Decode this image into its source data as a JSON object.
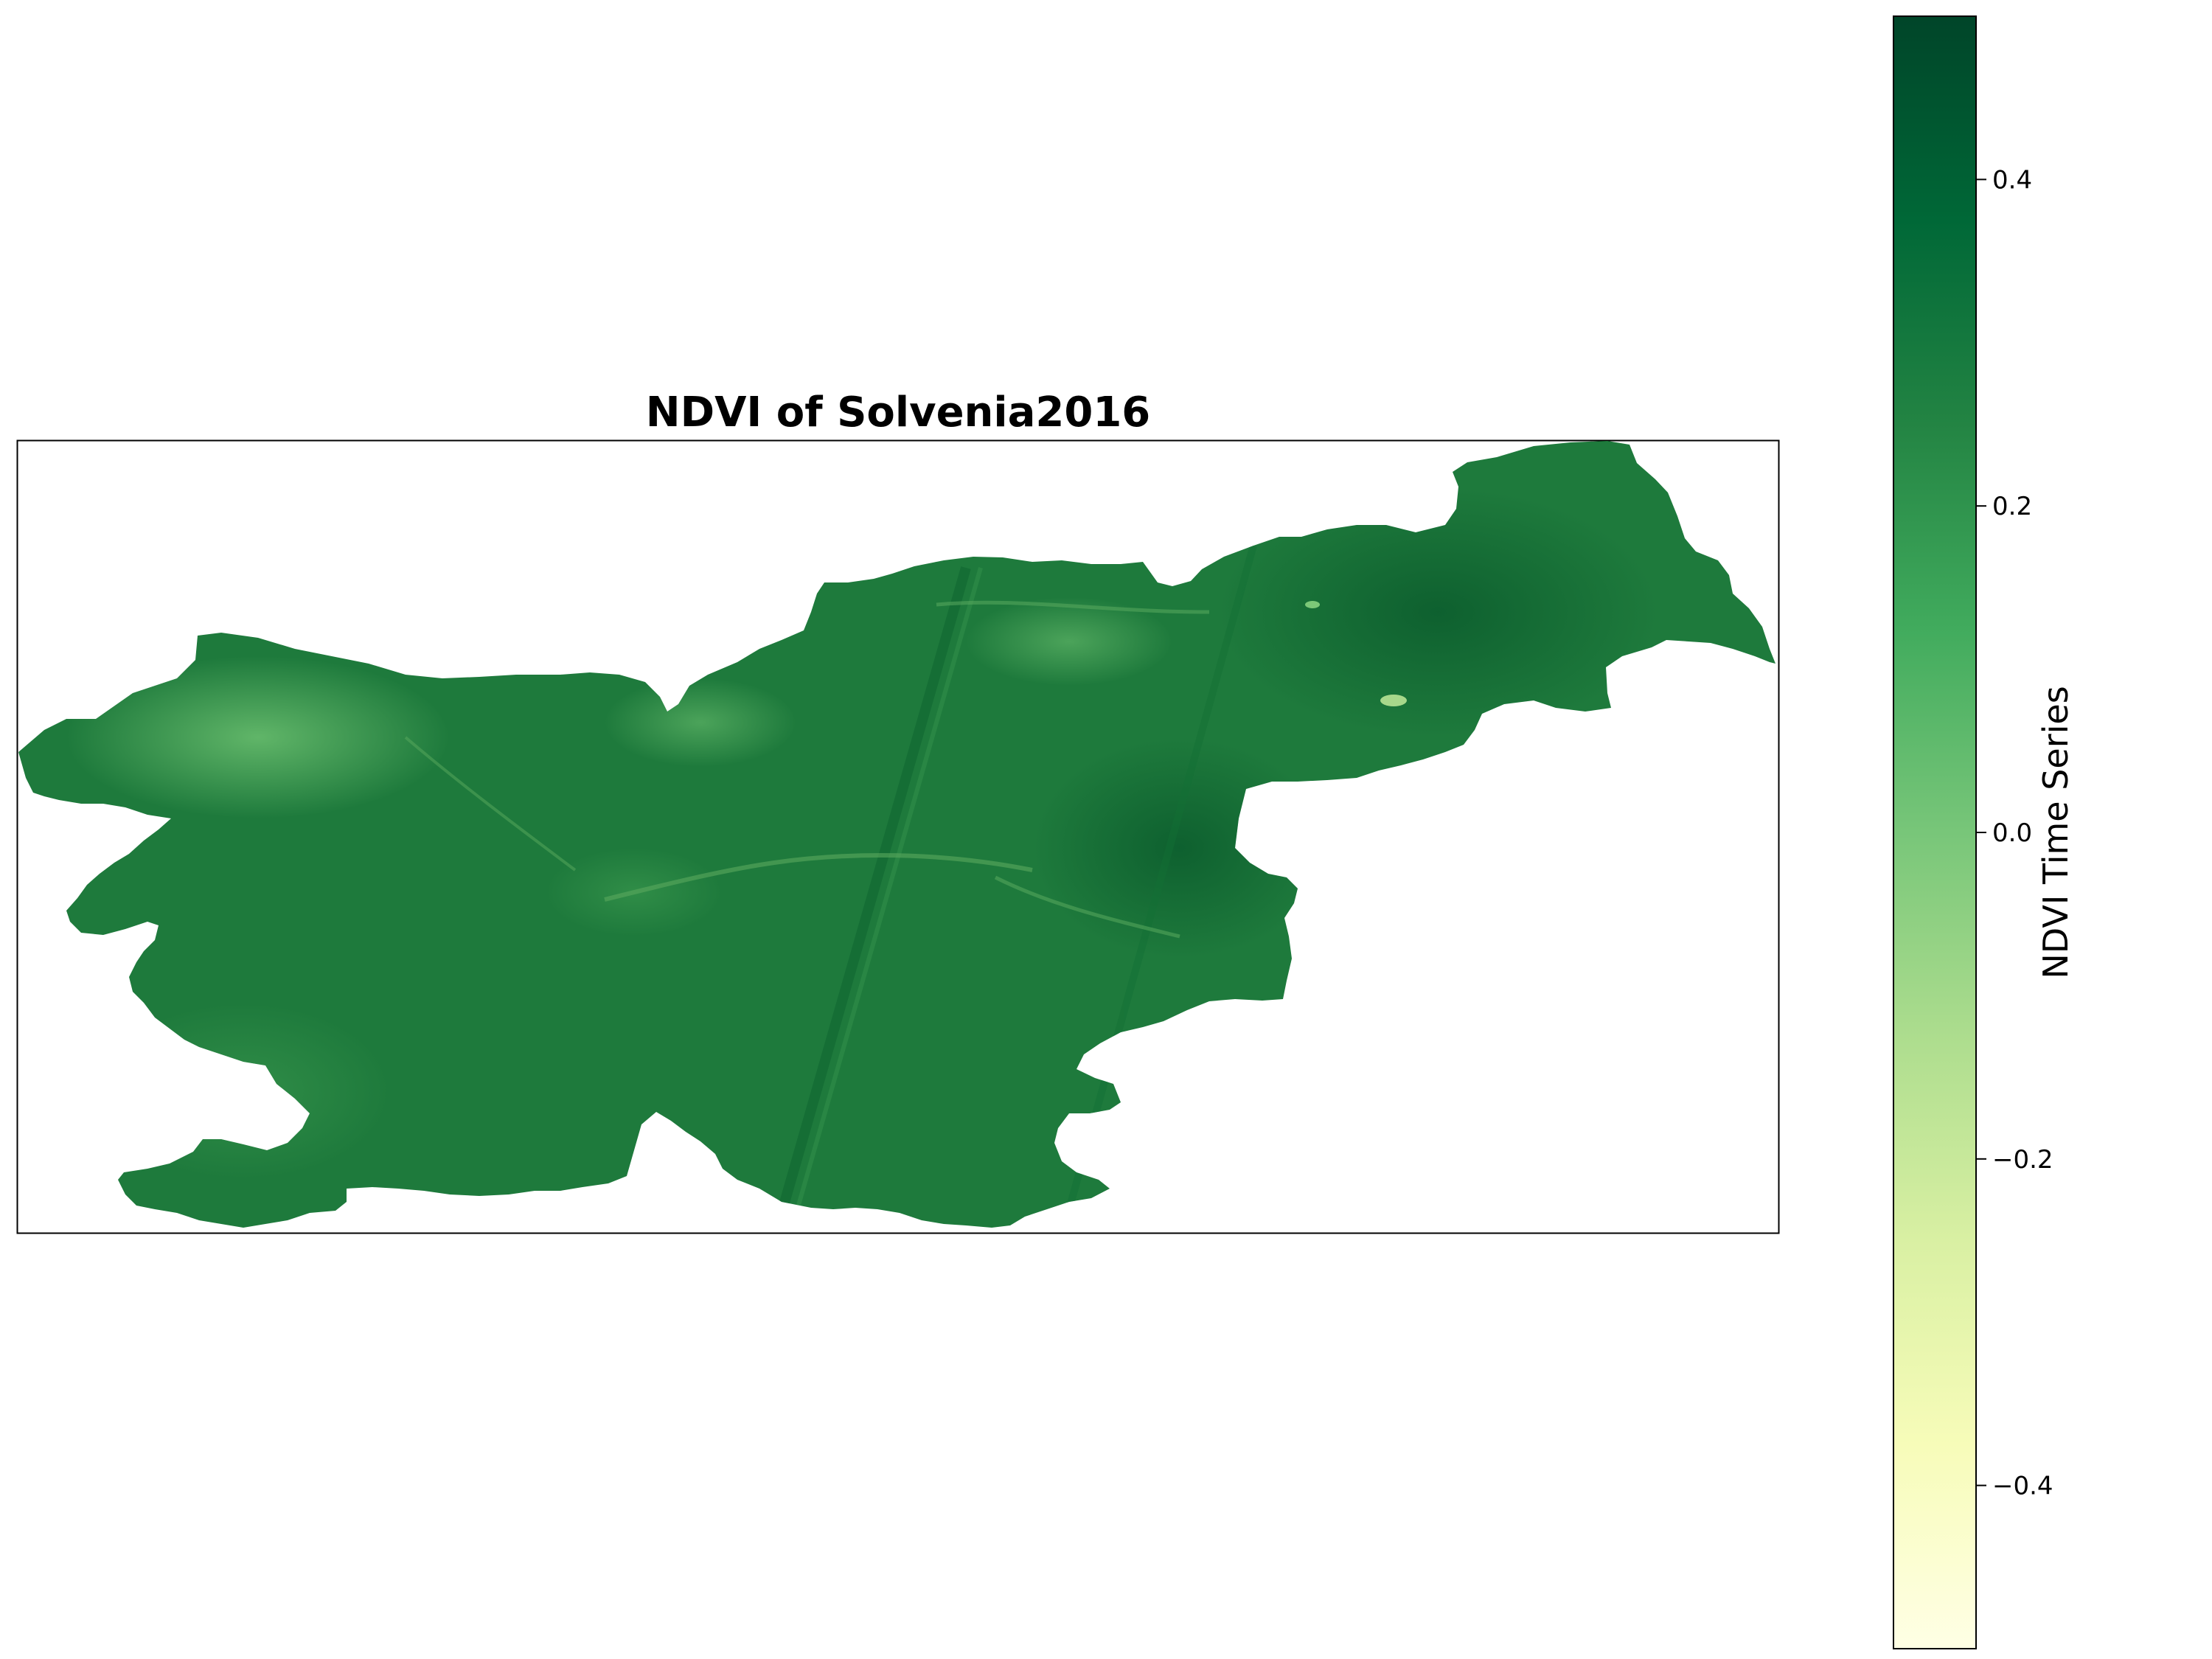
{
  "title": "NDVI of Solvenia2016",
  "colorbar": {
    "label": "NDVI Time Series",
    "colormap": "YlGn",
    "range": [
      -0.5,
      0.5
    ],
    "tick_labels": [
      "0.4",
      "0.2",
      "0.0",
      "−0.2",
      "−0.4"
    ],
    "tick_values": [
      0.4,
      0.2,
      0.0,
      -0.2,
      -0.4
    ],
    "colors": [
      "#ffffe5",
      "#f7fcb9",
      "#d9f0a3",
      "#addd8e",
      "#78c679",
      "#41ab5d",
      "#238443",
      "#006837",
      "#004529"
    ]
  },
  "map": {
    "region": "Slovenia",
    "fill_color": "#1e7a3c",
    "frame_color": "#000000"
  },
  "chart_data": {
    "type": "heatmap",
    "title": "NDVI of Solvenia2016",
    "colorbar_label": "NDVI Time Series",
    "value_range": [
      -0.5,
      0.5
    ],
    "colorbar_ticks": [
      -0.4,
      -0.2,
      0.0,
      0.2,
      0.4
    ],
    "typical_value_range": [
      0.2,
      0.45
    ],
    "grid": false
  }
}
